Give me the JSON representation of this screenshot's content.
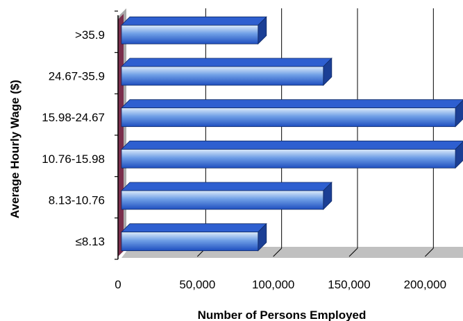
{
  "chart_data": {
    "type": "bar",
    "orientation": "horizontal",
    "style": "3d",
    "categories": [
      "≤8.13",
      "8.13-10.76",
      "10.76-15.98",
      "15.98-24.67",
      "24.67-35.9",
      ">35.9"
    ],
    "series": [
      {
        "values": [
          90000,
          133000,
          220000,
          220000,
          133000,
          90000
        ]
      }
    ],
    "xlabel": "Number of Persons Employed",
    "ylabel": "Average Hourly Wage ($)",
    "xlim": [
      0,
      225000
    ],
    "xticks": [
      0,
      50000,
      100000,
      150000,
      200000
    ],
    "xtick_labels": [
      "0",
      "50,000",
      "100,000",
      "150,000",
      "200,000"
    ],
    "grid": "vertical",
    "legend": "none",
    "colors": {
      "bar_light": "#DDEBFA",
      "bar_mid": "#6F9FE6",
      "bar_dark": "#1F4FBF",
      "bar_top": "#2E5FD0",
      "bar_side": "#1B3F95",
      "back_wall": "#A9A9A9",
      "side_wall": "#7A2E4C",
      "floor": "#C0C0C0"
    }
  }
}
